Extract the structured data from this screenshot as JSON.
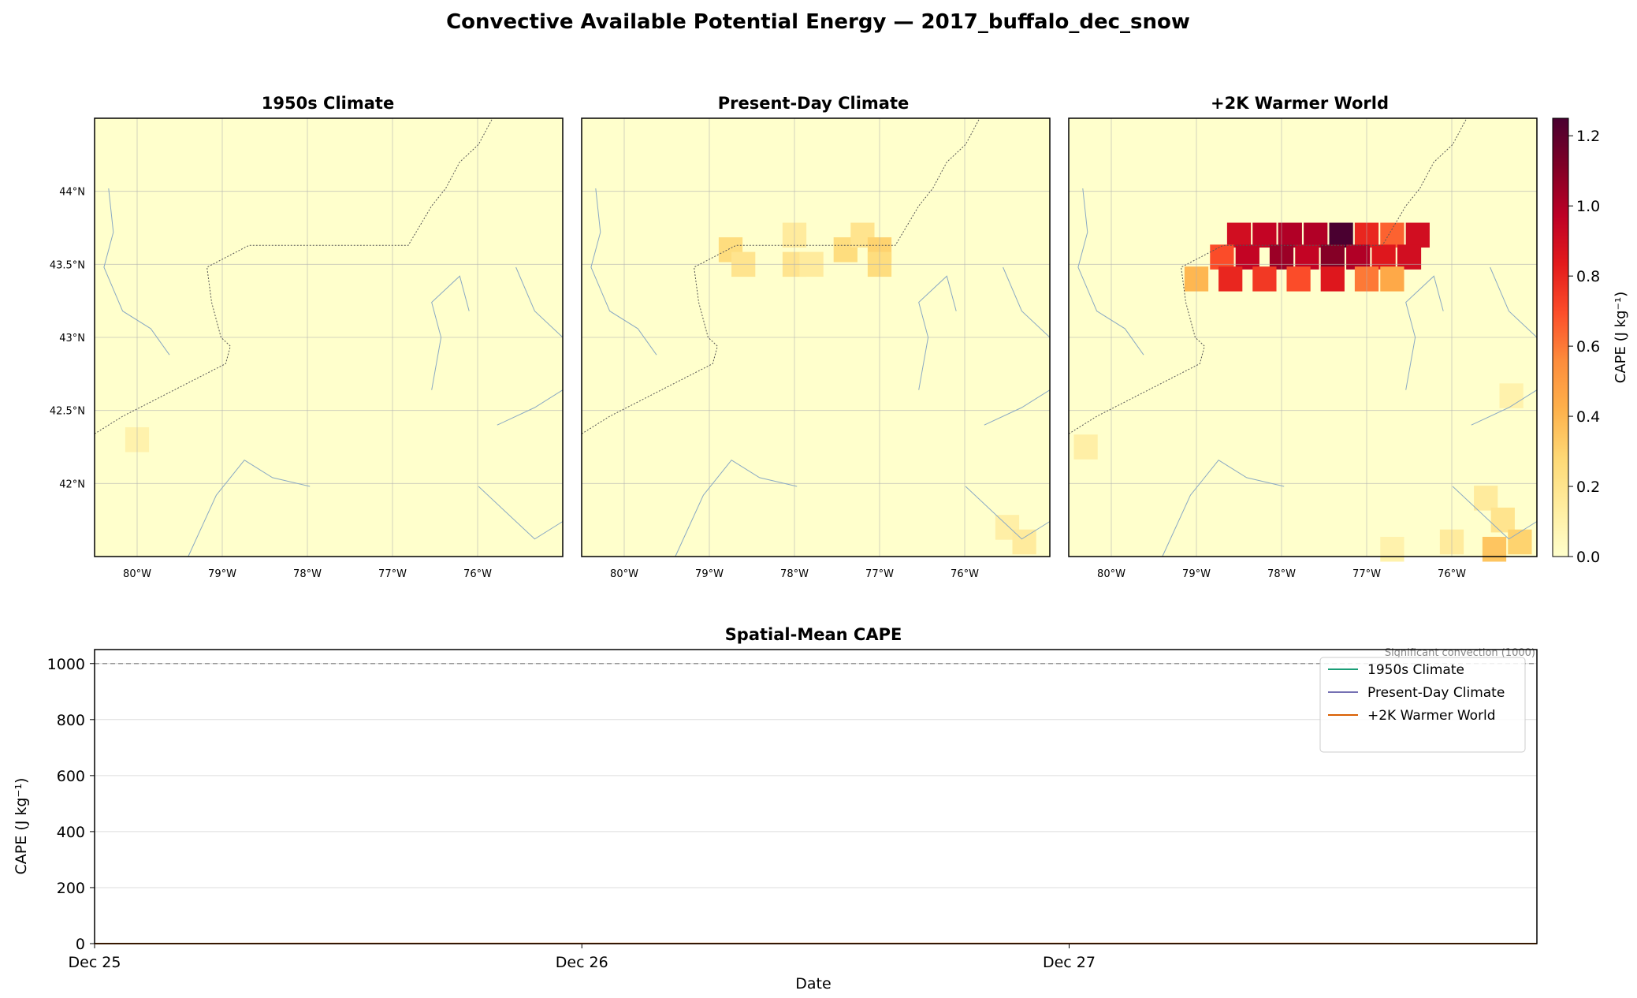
{
  "figure_title": "Convective Available Potential Energy — 2017_buffalo_dec_snow",
  "colors": {
    "colormap": [
      "#ffffcc",
      "#ffeda0",
      "#fed976",
      "#feb24c",
      "#fd8d3c",
      "#fc4e2a",
      "#e31a1c",
      "#bd0026",
      "#800026",
      "#4a0030"
    ],
    "gridline": "#b0b0b0",
    "border_line": "#555555",
    "river_line": "#8aa9c4",
    "series_1950s": "#1b9e77",
    "series_present": "#7570b3",
    "series_warmer": "#d95f02",
    "threshold": "#999999"
  },
  "chart_data": [
    {
      "type": "heatmap",
      "title": "1950s Climate",
      "xticks": [
        "80°W",
        "79°W",
        "78°W",
        "77°W",
        "76°W"
      ],
      "yticks": [
        "44°N",
        "43.5°N",
        "43°N",
        "42.5°N",
        "42°N"
      ],
      "lon_range": [
        -80.5,
        -75.0
      ],
      "lat_range": [
        41.5,
        44.5
      ],
      "cells": [
        {
          "lon": -80.0,
          "lat": 42.3,
          "value": 0.1
        }
      ]
    },
    {
      "type": "heatmap",
      "title": "Present-Day Climate",
      "xticks": [
        "80°W",
        "79°W",
        "78°W",
        "77°W",
        "76°W"
      ],
      "yticks": [],
      "lon_range": [
        -80.5,
        -75.0
      ],
      "lat_range": [
        41.5,
        44.5
      ],
      "cells": [
        {
          "lon": -78.75,
          "lat": 43.6,
          "value": 0.25
        },
        {
          "lon": -78.6,
          "lat": 43.5,
          "value": 0.2
        },
        {
          "lon": -78.0,
          "lat": 43.7,
          "value": 0.15
        },
        {
          "lon": -78.0,
          "lat": 43.5,
          "value": 0.2
        },
        {
          "lon": -77.8,
          "lat": 43.5,
          "value": 0.15
        },
        {
          "lon": -77.4,
          "lat": 43.6,
          "value": 0.25
        },
        {
          "lon": -77.2,
          "lat": 43.7,
          "value": 0.2
        },
        {
          "lon": -77.0,
          "lat": 43.6,
          "value": 0.3
        },
        {
          "lon": -77.0,
          "lat": 43.5,
          "value": 0.25
        },
        {
          "lon": -75.5,
          "lat": 41.7,
          "value": 0.12
        },
        {
          "lon": -75.3,
          "lat": 41.6,
          "value": 0.15
        }
      ]
    },
    {
      "type": "heatmap",
      "title": "+2K Warmer World",
      "xticks": [
        "80°W",
        "79°W",
        "78°W",
        "77°W",
        "76°W"
      ],
      "yticks": [],
      "lon_range": [
        -80.5,
        -75.0
      ],
      "lat_range": [
        41.5,
        44.5
      ],
      "colorbar": {
        "label": "CAPE (J kg⁻¹)",
        "range": [
          0.0,
          1.25
        ],
        "ticks": [
          "0.0",
          "0.2",
          "0.4",
          "0.6",
          "0.8",
          "1.0",
          "1.2"
        ]
      },
      "cells": [
        {
          "lon": -78.5,
          "lat": 43.7,
          "value": 0.9
        },
        {
          "lon": -78.2,
          "lat": 43.7,
          "value": 0.95
        },
        {
          "lon": -77.9,
          "lat": 43.7,
          "value": 1.0
        },
        {
          "lon": -77.6,
          "lat": 43.7,
          "value": 1.0
        },
        {
          "lon": -77.3,
          "lat": 43.7,
          "value": 1.25
        },
        {
          "lon": -77.0,
          "lat": 43.7,
          "value": 0.8
        },
        {
          "lon": -76.7,
          "lat": 43.7,
          "value": 0.65
        },
        {
          "lon": -76.4,
          "lat": 43.7,
          "value": 0.9
        },
        {
          "lon": -78.7,
          "lat": 43.55,
          "value": 0.7
        },
        {
          "lon": -78.4,
          "lat": 43.55,
          "value": 0.95
        },
        {
          "lon": -78.0,
          "lat": 43.55,
          "value": 1.05
        },
        {
          "lon": -77.7,
          "lat": 43.55,
          "value": 0.95
        },
        {
          "lon": -77.4,
          "lat": 43.55,
          "value": 1.1
        },
        {
          "lon": -77.1,
          "lat": 43.55,
          "value": 1.0
        },
        {
          "lon": -76.8,
          "lat": 43.55,
          "value": 0.85
        },
        {
          "lon": -76.5,
          "lat": 43.55,
          "value": 0.9
        },
        {
          "lon": -79.0,
          "lat": 43.4,
          "value": 0.4
        },
        {
          "lon": -78.6,
          "lat": 43.4,
          "value": 0.8
        },
        {
          "lon": -78.2,
          "lat": 43.4,
          "value": 0.75
        },
        {
          "lon": -77.8,
          "lat": 43.4,
          "value": 0.7
        },
        {
          "lon": -77.4,
          "lat": 43.4,
          "value": 0.85
        },
        {
          "lon": -77.0,
          "lat": 43.4,
          "value": 0.6
        },
        {
          "lon": -76.7,
          "lat": 43.4,
          "value": 0.45
        },
        {
          "lon": -80.3,
          "lat": 42.25,
          "value": 0.12
        },
        {
          "lon": -75.3,
          "lat": 42.6,
          "value": 0.1
        },
        {
          "lon": -75.6,
          "lat": 41.9,
          "value": 0.15
        },
        {
          "lon": -75.4,
          "lat": 41.75,
          "value": 0.2
        },
        {
          "lon": -75.2,
          "lat": 41.6,
          "value": 0.3
        },
        {
          "lon": -75.5,
          "lat": 41.55,
          "value": 0.35
        },
        {
          "lon": -76.0,
          "lat": 41.6,
          "value": 0.15
        },
        {
          "lon": -76.7,
          "lat": 41.55,
          "value": 0.1
        }
      ]
    },
    {
      "type": "line",
      "title": "Spatial-Mean CAPE",
      "xlabel": "Date",
      "ylabel": "CAPE (J kg⁻¹)",
      "xticks": [
        "Dec 25",
        "Dec 26",
        "Dec 27"
      ],
      "yticks": [
        "0",
        "200",
        "400",
        "600",
        "800",
        "1000"
      ],
      "xlim": [
        "Dec 25",
        "Dec 27.96"
      ],
      "ylim": [
        0,
        1050
      ],
      "grid": true,
      "legend_position": "top-right",
      "threshold": {
        "value": 1000,
        "label": "Significant convection (1000)"
      },
      "x": [
        0,
        0.5,
        1,
        1.5,
        2,
        2.5,
        2.96
      ],
      "series": [
        {
          "name": "1950s Climate",
          "values": [
            0,
            0,
            0,
            0,
            0,
            0,
            0
          ]
        },
        {
          "name": "Present-Day Climate",
          "values": [
            0,
            0,
            0,
            0,
            0,
            0,
            0
          ]
        },
        {
          "name": "+2K Warmer World",
          "values": [
            0.1,
            0.2,
            0.3,
            0.4,
            0.3,
            0.2,
            0.1
          ]
        }
      ]
    }
  ]
}
